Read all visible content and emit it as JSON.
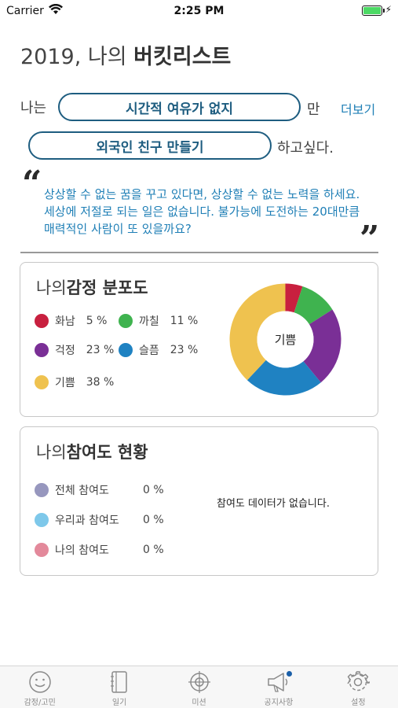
{
  "status_bar": {
    "carrier": "Carrier",
    "time": "2:25 PM"
  },
  "header": {
    "title_prefix": "2019, 나의 ",
    "title_bold": "버킷리스트"
  },
  "bucket": {
    "lead": "나는",
    "condition": "시간적 여유가 없지",
    "connector": "만",
    "more_label": "더보기",
    "wish": "외국인 친구 만들기",
    "suffix": "하고싶다."
  },
  "quote": {
    "open_mark": "“",
    "close_mark": "”",
    "text": "상상할 수 없는 꿈을 꾸고 있다면, 상상할 수 없는 노력을 하세요. 세상에 저절로 되는 일은 없습니다. 불가능에 도전하는 20대만큼 매력적인 사람이 또 있을까요?"
  },
  "emotion_card": {
    "title_prefix": "나의",
    "title_bold": "감정 분포도",
    "center_label": "기쁨",
    "items": [
      {
        "label": "화남",
        "pct": "5 %",
        "color": "#c8203f"
      },
      {
        "label": "까칠",
        "pct": "11 %",
        "color": "#3fb34f"
      },
      {
        "label": "걱정",
        "pct": "23 %",
        "color": "#7a2f96"
      },
      {
        "label": "슬픔",
        "pct": "23 %",
        "color": "#1f82c2"
      },
      {
        "label": "기쁨",
        "pct": "38 %",
        "color": "#efc24f"
      }
    ]
  },
  "chart_data": {
    "type": "pie",
    "categories": [
      "화남",
      "까칠",
      "걱정",
      "슬픔",
      "기쁨"
    ],
    "values": [
      5,
      11,
      23,
      23,
      38
    ],
    "colors": [
      "#c8203f",
      "#3fb34f",
      "#7a2f96",
      "#1f82c2",
      "#efc24f"
    ],
    "center_label": "기쁨",
    "donut": true
  },
  "participation_card": {
    "title_prefix": "나의",
    "title_bold": "참여도 현황",
    "no_data_text": "참여도 데이터가 없습니다.",
    "items": [
      {
        "label": "전체 참여도",
        "pct": "0 %",
        "color": "#9797be"
      },
      {
        "label": "우리과 참여도",
        "pct": "0 %",
        "color": "#7ec8ea"
      },
      {
        "label": "나의 참여도",
        "pct": "0 %",
        "color": "#e3899b"
      }
    ]
  },
  "tabbar": {
    "items": [
      {
        "label": "감정/고민",
        "icon": "smiley-icon"
      },
      {
        "label": "일기",
        "icon": "notebook-icon"
      },
      {
        "label": "미션",
        "icon": "target-icon"
      },
      {
        "label": "공지사항",
        "icon": "megaphone-icon"
      },
      {
        "label": "설정",
        "icon": "gear-icon"
      }
    ]
  }
}
